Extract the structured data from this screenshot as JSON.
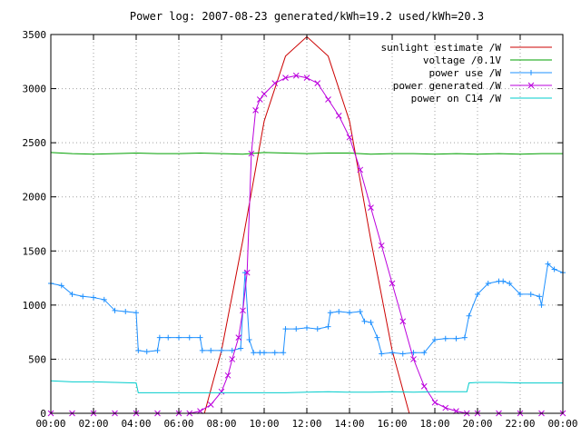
{
  "chart_data": {
    "type": "line",
    "title": "Power log: 2007-08-23 generated/kWh=19.2 used/kWh=20.3",
    "xlabel": "",
    "ylabel": "",
    "xlim": [
      0,
      24
    ],
    "ylim": [
      0,
      3500
    ],
    "x_ticks": [
      "00:00",
      "02:00",
      "04:00",
      "06:00",
      "08:00",
      "10:00",
      "12:00",
      "14:00",
      "16:00",
      "18:00",
      "20:00",
      "22:00",
      "00:00"
    ],
    "y_ticks": [
      0,
      500,
      1000,
      1500,
      2000,
      2500,
      3000,
      3500
    ],
    "grid": true,
    "legend_position": "top-right",
    "series": [
      {
        "name": "sunlight estimate /W",
        "color": "#cc0000",
        "style": "line",
        "x": [
          7.2,
          8.0,
          9.0,
          10.0,
          11.0,
          12.0,
          13.0,
          14.0,
          15.0,
          16.0,
          16.8
        ],
        "y": [
          0,
          580,
          1600,
          2700,
          3300,
          3480,
          3300,
          2700,
          1600,
          580,
          0
        ]
      },
      {
        "name": "voltage /0.1V",
        "color": "#00a000",
        "style": "line",
        "x": [
          0,
          1,
          2,
          3,
          4,
          5,
          6,
          7,
          8,
          9,
          10,
          11,
          12,
          13,
          14,
          15,
          16,
          17,
          18,
          19,
          20,
          21,
          22,
          23,
          24
        ],
        "y": [
          2410,
          2400,
          2395,
          2400,
          2405,
          2400,
          2400,
          2405,
          2400,
          2395,
          2410,
          2405,
          2400,
          2405,
          2405,
          2395,
          2400,
          2400,
          2395,
          2400,
          2395,
          2400,
          2395,
          2400,
          2400
        ]
      },
      {
        "name": "power use /W",
        "color": "#1e90ff",
        "style": "line-plus",
        "x": [
          0,
          0.5,
          1.0,
          1.5,
          2.0,
          2.5,
          3.0,
          3.5,
          4.0,
          4.1,
          4.5,
          5.0,
          5.1,
          5.5,
          6.0,
          6.5,
          7.0,
          7.1,
          7.5,
          8.0,
          8.5,
          8.9,
          9.1,
          9.3,
          9.5,
          9.8,
          10.0,
          10.5,
          10.9,
          11.0,
          11.5,
          12.0,
          12.5,
          13.0,
          13.1,
          13.5,
          14.0,
          14.5,
          14.7,
          15.0,
          15.3,
          15.5,
          16.0,
          16.5,
          17.0,
          17.5,
          18.0,
          18.5,
          19.0,
          19.4,
          19.6,
          20.0,
          20.5,
          21.0,
          21.2,
          21.5,
          22.0,
          22.5,
          22.9,
          23.0,
          23.3,
          23.6,
          24.0
        ],
        "y": [
          1200,
          1180,
          1100,
          1080,
          1070,
          1050,
          950,
          940,
          930,
          580,
          570,
          580,
          700,
          700,
          700,
          700,
          700,
          580,
          580,
          580,
          580,
          600,
          1300,
          680,
          560,
          560,
          560,
          560,
          560,
          780,
          780,
          790,
          780,
          800,
          930,
          940,
          930,
          940,
          850,
          840,
          700,
          550,
          560,
          550,
          560,
          560,
          680,
          690,
          690,
          700,
          900,
          1100,
          1200,
          1220,
          1220,
          1200,
          1100,
          1100,
          1080,
          1000,
          1380,
          1330,
          1300
        ]
      },
      {
        "name": "power generated /W",
        "color": "#bb00dd",
        "style": "line-x",
        "x": [
          0,
          1.0,
          2.0,
          3.0,
          4.0,
          5.0,
          6.0,
          6.5,
          7.0,
          7.5,
          8.0,
          8.3,
          8.5,
          8.8,
          9.0,
          9.2,
          9.4,
          9.6,
          9.8,
          10.0,
          10.5,
          11.0,
          11.5,
          12.0,
          12.5,
          13.0,
          13.5,
          14.0,
          14.5,
          15.0,
          15.5,
          16.0,
          16.5,
          17.0,
          17.5,
          18.0,
          18.5,
          19.0,
          19.5,
          20.0,
          21.0,
          22.0,
          23.0,
          24.0
        ],
        "y": [
          0,
          0,
          0,
          0,
          0,
          0,
          0,
          0,
          20,
          80,
          200,
          350,
          500,
          700,
          950,
          1300,
          2400,
          2800,
          2900,
          2950,
          3050,
          3100,
          3120,
          3100,
          3050,
          2900,
          2750,
          2550,
          2250,
          1900,
          1550,
          1200,
          850,
          500,
          250,
          100,
          50,
          20,
          0,
          0,
          0,
          0,
          0,
          0
        ]
      },
      {
        "name": "power on C14 /W",
        "color": "#00cccc",
        "style": "line",
        "x": [
          0,
          1.0,
          2.0,
          3.0,
          4.0,
          4.1,
          5.0,
          6.0,
          7.0,
          8.0,
          9.0,
          10.0,
          11.0,
          12.0,
          13.0,
          14.0,
          15.0,
          16.0,
          17.0,
          18.0,
          19.0,
          19.5,
          19.6,
          20.0,
          21.0,
          22.0,
          23.0,
          24.0
        ],
        "y": [
          300,
          290,
          290,
          285,
          280,
          190,
          190,
          190,
          190,
          190,
          190,
          190,
          190,
          195,
          200,
          195,
          195,
          200,
          195,
          200,
          200,
          200,
          280,
          285,
          285,
          280,
          280,
          280
        ]
      }
    ]
  }
}
